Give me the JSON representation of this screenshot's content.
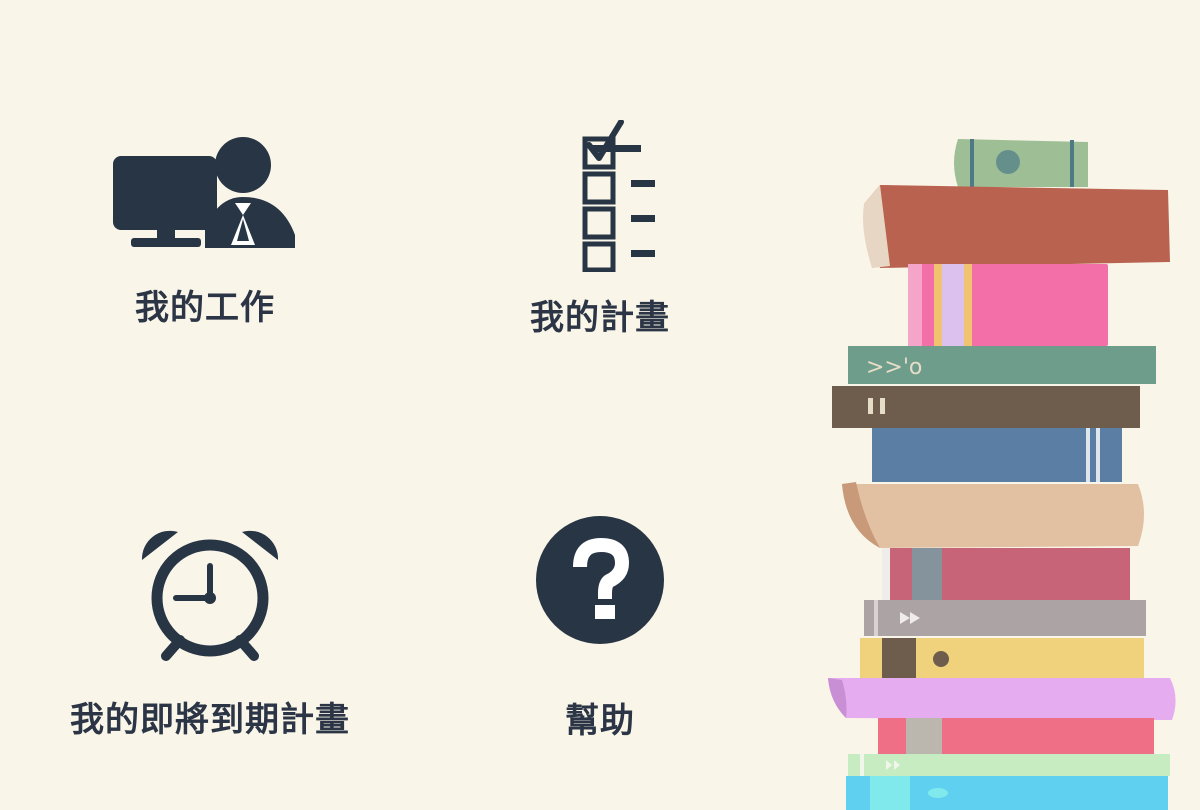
{
  "menu": {
    "items": [
      {
        "label": "我的工作",
        "icon": "worker-at-computer-icon"
      },
      {
        "label": "我的計畫",
        "icon": "checklist-icon"
      },
      {
        "label": "我的即將到期計畫",
        "icon": "alarm-clock-icon"
      },
      {
        "label": "幫助",
        "icon": "question-mark-icon"
      }
    ]
  },
  "colors": {
    "background": "#f9f5e8",
    "icon": "#283545",
    "text": "#2b3545"
  },
  "decoration": {
    "icon": "book-stack-illustration"
  }
}
